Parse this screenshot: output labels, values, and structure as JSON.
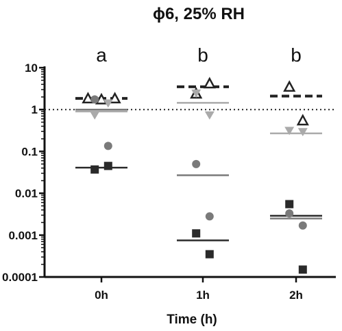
{
  "chart_data": {
    "type": "scatter",
    "title": "ϕ6, 25% RH",
    "xlabel": "Time (h)",
    "ylabel": "",
    "categories": [
      "0h",
      "1h",
      "2h"
    ],
    "y_scale": "log",
    "ylim": [
      0.0001,
      10
    ],
    "y_ticks": [
      {
        "value": 10,
        "label": "10"
      },
      {
        "value": 1,
        "label": "1"
      },
      {
        "value": 0.1,
        "label": "0.1"
      },
      {
        "value": 0.01,
        "label": "0.01"
      },
      {
        "value": 0.001,
        "label": "0.001"
      },
      {
        "value": 0.0001,
        "label": "0.0001"
      }
    ],
    "reference_line": {
      "y": 1,
      "style": "dotted"
    },
    "group_letters": [
      "a",
      "b",
      "b"
    ],
    "grid": false,
    "series": [
      {
        "marker": "triangle-up-open",
        "color": "#222222",
        "mean_line": "dashed",
        "points": [
          [
            0,
            1.85
          ],
          [
            0,
            1.75
          ],
          [
            0,
            1.85
          ],
          [
            1,
            2.4
          ],
          [
            1,
            4.2
          ],
          [
            2,
            3.5
          ],
          [
            2,
            0.55
          ]
        ],
        "means": [
          1.85,
          3.5,
          2.1
        ]
      },
      {
        "marker": "triangle-down",
        "color": "#aaaaaa",
        "mean_line": "solid",
        "points": [
          [
            0,
            0.75
          ],
          [
            0,
            1.45
          ],
          [
            1,
            2.5
          ],
          [
            1,
            0.75
          ],
          [
            2,
            0.32
          ],
          [
            2,
            0.3
          ]
        ],
        "means": [
          0.9,
          1.45,
          0.27
        ]
      },
      {
        "marker": "circle",
        "color": "#7a7a7a",
        "mean_line": "solid",
        "points": [
          [
            0,
            1.75
          ],
          [
            0,
            0.135
          ],
          [
            1,
            0.05
          ],
          [
            1,
            0.0028
          ],
          [
            2,
            0.0033
          ],
          [
            2,
            0.0017
          ]
        ],
        "means": [
          1.0,
          0.027,
          0.0025
        ]
      },
      {
        "marker": "square",
        "color": "#2a2a2a",
        "mean_line": "solid",
        "points": [
          [
            0,
            0.037
          ],
          [
            0,
            0.045
          ],
          [
            1,
            0.0011
          ],
          [
            1,
            0.00035
          ],
          [
            2,
            0.0055
          ],
          [
            2,
            0.00015
          ]
        ],
        "means": [
          0.041,
          0.00075,
          0.0029
        ]
      }
    ]
  }
}
